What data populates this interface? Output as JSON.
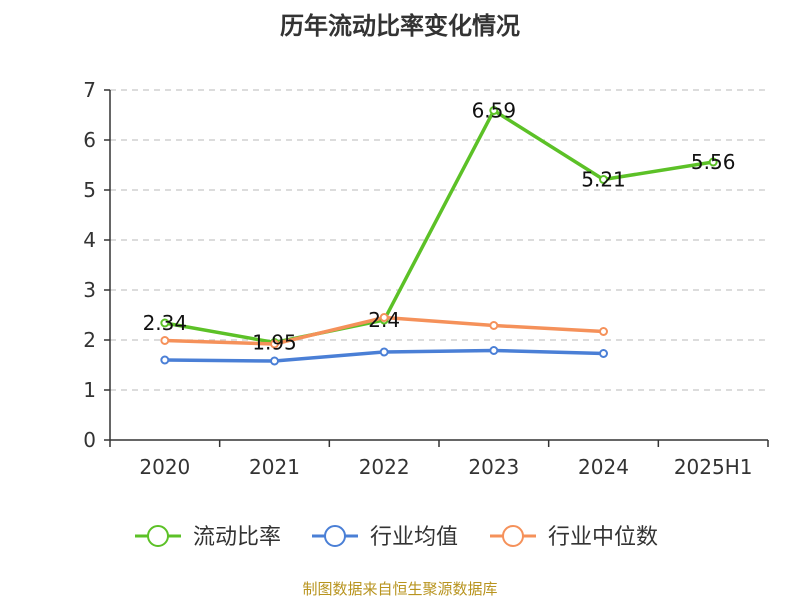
{
  "title": "历年流动比率变化情况",
  "source": "制图数据来自恒生聚源数据库",
  "chart_data": {
    "type": "line",
    "categories": [
      "2020",
      "2021",
      "2022",
      "2023",
      "2024",
      "2025H1"
    ],
    "ylim": [
      0,
      7
    ],
    "yticks": [
      "0",
      "1",
      "2",
      "3",
      "4",
      "5",
      "6",
      "7"
    ],
    "grid": true,
    "legend_position": "bottom",
    "series": [
      {
        "name": "流动比率",
        "color": "#5cc127",
        "values": [
          2.34,
          1.95,
          2.4,
          6.59,
          5.21,
          5.56
        ],
        "labels": [
          "2.34",
          "1.95",
          "2.4",
          "6.59",
          "5.21",
          "5.56"
        ]
      },
      {
        "name": "行业均值",
        "color": "#4a7fd6",
        "values": [
          1.6,
          1.58,
          1.76,
          1.79,
          1.73,
          null
        ]
      },
      {
        "name": "行业中位数",
        "color": "#f5915a",
        "values": [
          1.99,
          1.92,
          2.45,
          2.29,
          2.17,
          null
        ]
      }
    ]
  }
}
